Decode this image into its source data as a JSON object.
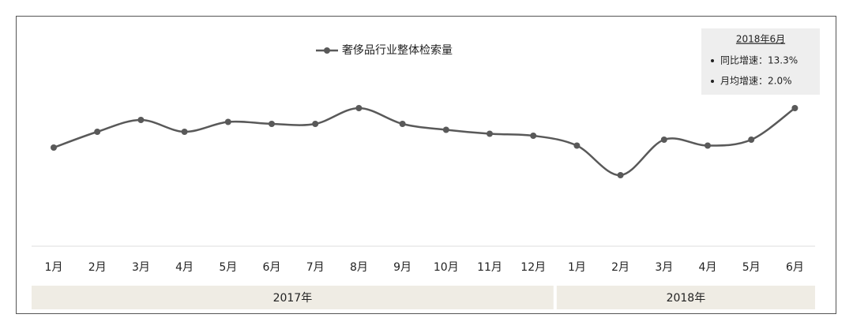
{
  "chart_data": {
    "type": "line",
    "categories": [
      "1月",
      "2月",
      "3月",
      "4月",
      "5月",
      "6月",
      "7月",
      "8月",
      "9月",
      "10月",
      "11月",
      "12月",
      "1月",
      "2月",
      "3月",
      "4月",
      "5月",
      "6月"
    ],
    "groups": [
      {
        "label": "2017年",
        "count": 12
      },
      {
        "label": "2018年",
        "count": 6
      }
    ],
    "series": [
      {
        "name": "奢侈品行业整体检索量",
        "color": "#595959",
        "values": [
          50,
          58,
          64,
          58,
          63,
          62,
          62,
          70,
          62,
          59,
          57,
          56,
          51,
          36,
          54,
          51,
          54,
          70
        ]
      }
    ],
    "ylim": [
      0,
      100
    ],
    "annotation": {
      "title": "2018年6月",
      "items": [
        "同比增速：13.3%",
        "月均增速：2.0%"
      ]
    }
  }
}
